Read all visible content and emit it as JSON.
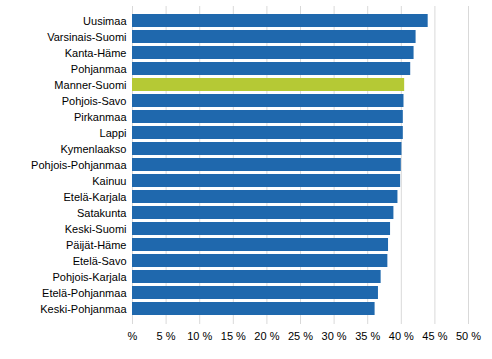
{
  "chart_data": {
    "type": "bar",
    "orientation": "horizontal",
    "categories": [
      "Uusimaa",
      "Varsinais-Suomi",
      "Kanta-Häme",
      "Pohjanmaa",
      "Manner-Suomi",
      "Pohjois-Savo",
      "Pirkanmaa",
      "Lappi",
      "Kymenlaakso",
      "Pohjois-Pohjanmaa",
      "Kainuu",
      "Etelä-Karjala",
      "Satakunta",
      "Keski-Suomi",
      "Päijät-Häme",
      "Etelä-Savo",
      "Pohjois-Karjala",
      "Etelä-Pohjanmaa",
      "Keski-Pohjanmaa"
    ],
    "values": [
      44.0,
      42.2,
      41.9,
      41.4,
      40.5,
      40.4,
      40.3,
      40.3,
      40.1,
      40.0,
      39.9,
      39.5,
      38.9,
      38.4,
      38.1,
      38.0,
      37.0,
      36.6,
      36.1
    ],
    "colors": [
      "#1f68ad",
      "#1f68ad",
      "#1f68ad",
      "#1f68ad",
      "#b5c935",
      "#1f68ad",
      "#1f68ad",
      "#1f68ad",
      "#1f68ad",
      "#1f68ad",
      "#1f68ad",
      "#1f68ad",
      "#1f68ad",
      "#1f68ad",
      "#1f68ad",
      "#1f68ad",
      "#1f68ad",
      "#1f68ad",
      "#1f68ad"
    ],
    "xlim": [
      0,
      50
    ],
    "xticks": [
      {
        "value": 0,
        "label": "%"
      },
      {
        "value": 5,
        "label": "5 %"
      },
      {
        "value": 10,
        "label": "10 %"
      },
      {
        "value": 15,
        "label": "15 %"
      },
      {
        "value": 20,
        "label": "20 %"
      },
      {
        "value": 25,
        "label": "25 %"
      },
      {
        "value": 30,
        "label": "30 %"
      },
      {
        "value": 35,
        "label": "35 %"
      },
      {
        "value": 40,
        "label": "40 %"
      },
      {
        "value": 45,
        "label": "45 %"
      },
      {
        "value": 50,
        "label": "50 %"
      }
    ],
    "grid": true
  }
}
